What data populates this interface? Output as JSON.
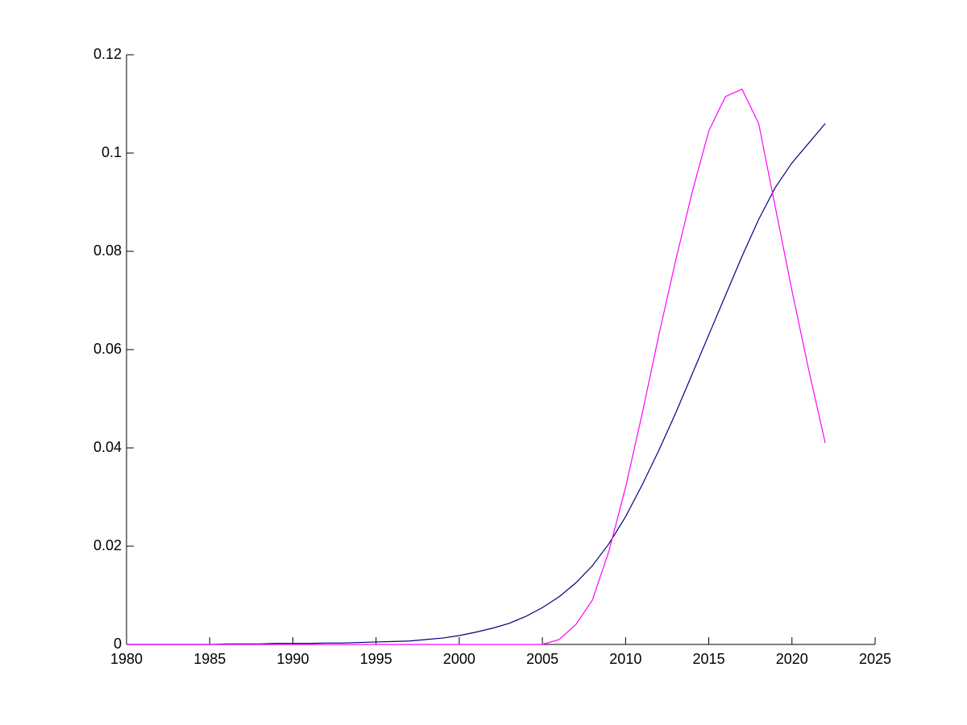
{
  "chart_data": {
    "type": "line",
    "x": [
      1980,
      1981,
      1982,
      1983,
      1984,
      1985,
      1986,
      1987,
      1988,
      1989,
      1990,
      1991,
      1992,
      1993,
      1994,
      1995,
      1996,
      1997,
      1998,
      1999,
      2000,
      2001,
      2002,
      2003,
      2004,
      2005,
      2006,
      2007,
      2008,
      2009,
      2010,
      2011,
      2012,
      2013,
      2014,
      2015,
      2016,
      2017,
      2018,
      2019,
      2020,
      2021,
      2022
    ],
    "series": [
      {
        "color": "#000080",
        "values": [
          0,
          0,
          0,
          0,
          0,
          0,
          0.0001,
          0.0001,
          0.0001,
          0.0002,
          0.0002,
          0.0002,
          0.0003,
          0.0003,
          0.0004,
          0.0005,
          0.0006,
          0.0007,
          0.001,
          0.0013,
          0.0018,
          0.0025,
          0.0033,
          0.0043,
          0.0057,
          0.0075,
          0.0097,
          0.0125,
          0.016,
          0.0205,
          0.026,
          0.0325,
          0.0395,
          0.047,
          0.055,
          0.063,
          0.071,
          0.079,
          0.0865,
          0.093,
          0.098,
          0.102,
          0.106
        ]
      },
      {
        "color": "#ff00ff",
        "values": [
          0,
          0,
          0,
          0,
          0,
          0,
          0,
          0,
          0,
          0,
          0,
          0,
          0,
          0,
          0,
          0,
          0,
          0,
          0,
          0,
          0,
          0,
          0,
          0,
          0,
          0,
          0.001,
          0.004,
          0.009,
          0.019,
          0.032,
          0.047,
          0.063,
          0.078,
          0.092,
          0.1045,
          0.1115,
          0.113,
          0.106,
          0.089,
          0.072,
          0.056,
          0.041
        ]
      }
    ],
    "xlim": [
      1980,
      2025
    ],
    "xticks": [
      1980,
      1985,
      1990,
      1995,
      2000,
      2005,
      2010,
      2015,
      2020,
      2025
    ],
    "ylim": [
      0,
      0.12
    ],
    "yticks": [
      0,
      0.02,
      0.04,
      0.06,
      0.08,
      0.1,
      0.12
    ]
  }
}
